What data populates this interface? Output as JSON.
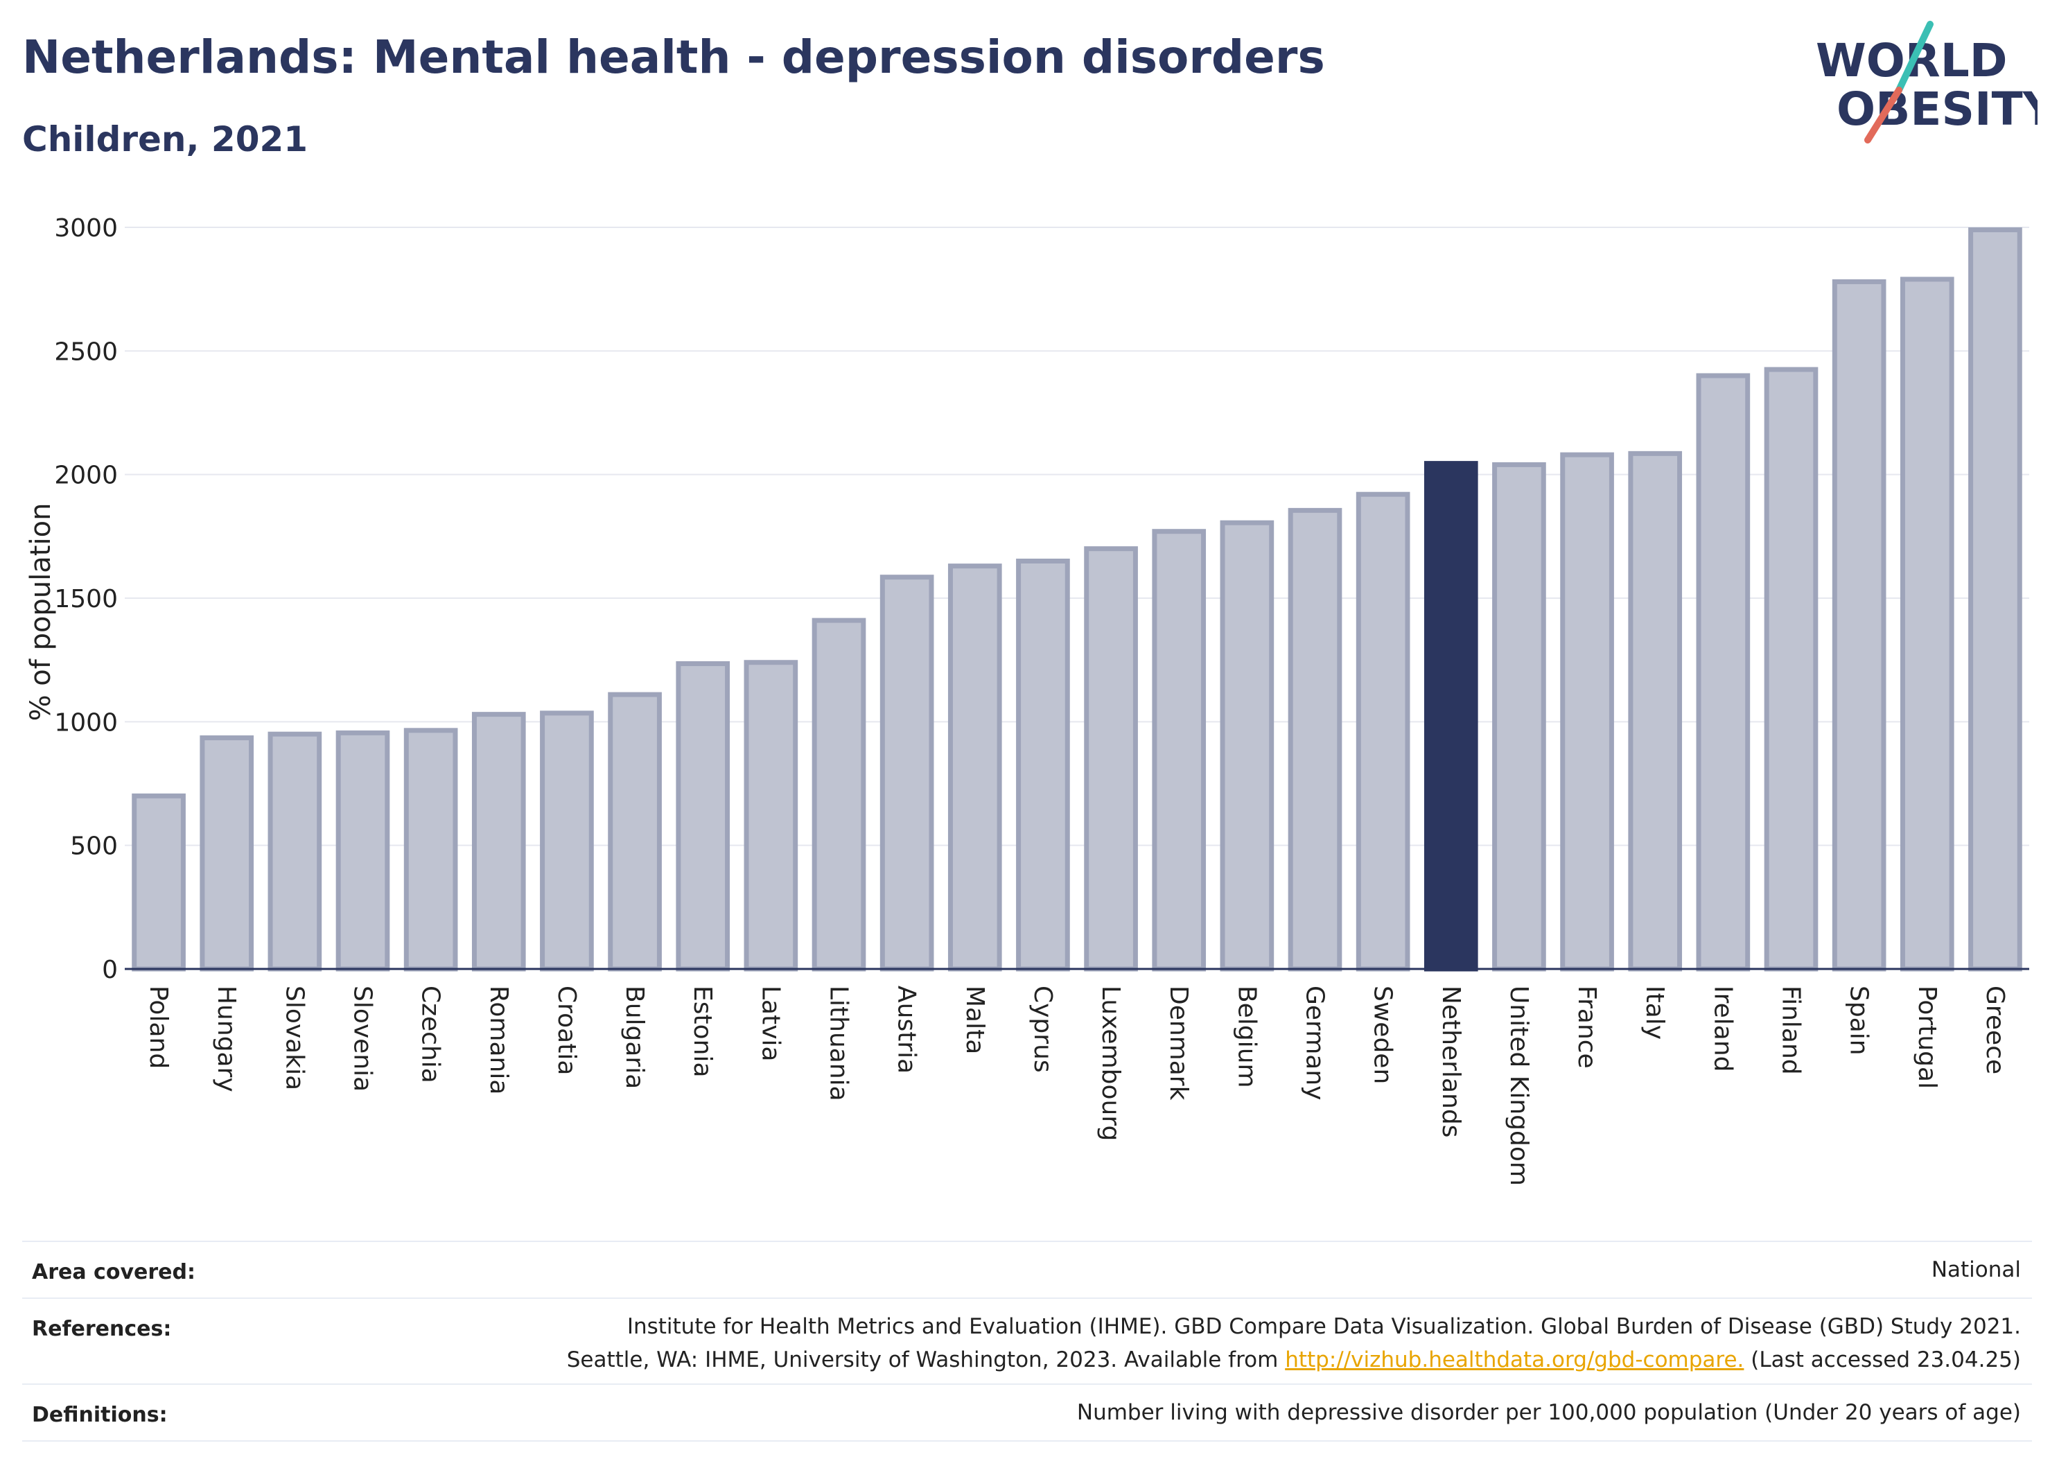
{
  "header": {
    "title": "Netherlands: Mental health - depression disorders",
    "subtitle": "Children, 2021"
  },
  "logo": {
    "line1": "WORLD",
    "line2": "OBESITY",
    "accent_teal": "#3bbfb4",
    "accent_red": "#e26a5a",
    "text_color": "#2b365f"
  },
  "colors": {
    "bar_fill": "#bfc3d1",
    "bar_stroke": "#9ea4ba",
    "highlight_fill": "#2b365f",
    "grid": "#e6e8ef",
    "axis": "#2b365f"
  },
  "chart_data": {
    "type": "bar",
    "ylabel": "% of population",
    "ylim": [
      0,
      3000
    ],
    "yticks": [
      0,
      500,
      1000,
      1500,
      2000,
      2500,
      3000
    ],
    "grid": true,
    "highlight": "Netherlands",
    "categories": [
      "Poland",
      "Hungary",
      "Slovakia",
      "Slovenia",
      "Czechia",
      "Romania",
      "Croatia",
      "Bulgaria",
      "Estonia",
      "Latvia",
      "Lithuania",
      "Austria",
      "Malta",
      "Cyprus",
      "Luxembourg",
      "Denmark",
      "Belgium",
      "Germany",
      "Sweden",
      "Netherlands",
      "United Kingdom",
      "France",
      "Italy",
      "Ireland",
      "Finland",
      "Spain",
      "Portugal",
      "Greece"
    ],
    "values": [
      700,
      935,
      950,
      955,
      965,
      1030,
      1035,
      1110,
      1235,
      1240,
      1410,
      1585,
      1630,
      1650,
      1700,
      1770,
      1805,
      1855,
      1920,
      2045,
      2040,
      2080,
      2085,
      2400,
      2425,
      2780,
      2790,
      2990
    ]
  },
  "meta": {
    "area_label": "Area covered:",
    "area_value": "National",
    "references_label": "References:",
    "references_line1": "Institute for Health Metrics and Evaluation (IHME). GBD Compare Data Visualization. Global Burden of Disease (GBD) Study 2021.",
    "references_line2_pre": "Seattle, WA: IHME, University of Washington, 2023. Available from ",
    "references_link": "http://vizhub.healthdata.org/gbd-compare.",
    "references_line2_post": " (Last accessed 23.04.25)",
    "definitions_label": "Definitions:",
    "definitions_value": "Number living with depressive disorder per 100,000 population (Under 20 years of age)"
  }
}
